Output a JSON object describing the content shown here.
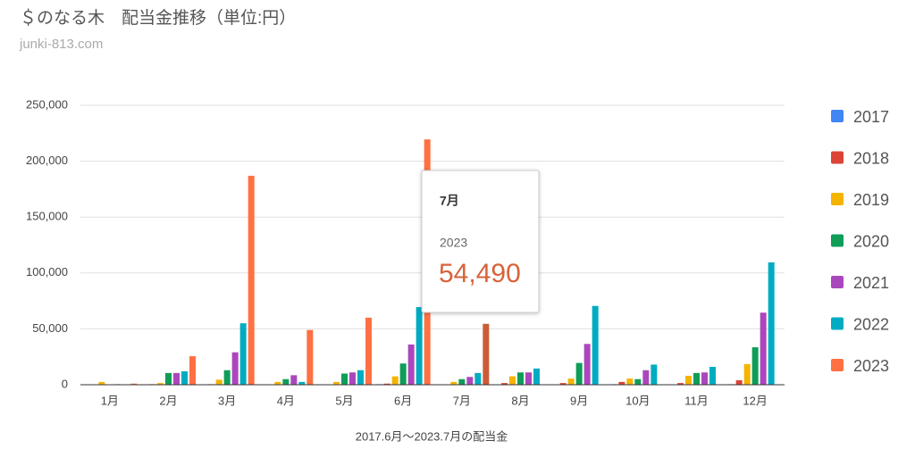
{
  "chart_data": {
    "type": "bar",
    "title": "＄のなる木　配当金推移（単位:円）",
    "subtitle": "junki-813.com",
    "x_label": "2017.6月～2023.7月の配当金",
    "categories": [
      "1月",
      "2月",
      "3月",
      "4月",
      "5月",
      "6月",
      "7月",
      "8月",
      "9月",
      "10月",
      "11月",
      "12月"
    ],
    "series": [
      {
        "name": "2017",
        "color": "#4285f4",
        "values": [
          null,
          null,
          null,
          null,
          null,
          500,
          0,
          0,
          0,
          500,
          0,
          500
        ]
      },
      {
        "name": "2018",
        "color": "#db4437",
        "values": [
          200,
          500,
          500,
          0,
          0,
          1000,
          0,
          1500,
          1500,
          2500,
          1500,
          4000
        ]
      },
      {
        "name": "2019",
        "color": "#f4b400",
        "values": [
          2500,
          1500,
          4500,
          2500,
          2500,
          7500,
          2500,
          7500,
          5500,
          5500,
          8000,
          18500
        ]
      },
      {
        "name": "2020",
        "color": "#0f9d58",
        "values": [
          0,
          10500,
          13000,
          5000,
          10000,
          19000,
          5000,
          11000,
          19500,
          5000,
          10500,
          33500
        ]
      },
      {
        "name": "2021",
        "color": "#ab47bc",
        "values": [
          500,
          10500,
          29000,
          8500,
          11000,
          36000,
          7000,
          11000,
          36500,
          13000,
          11000,
          64500
        ]
      },
      {
        "name": "2022",
        "color": "#00acc1",
        "values": [
          0,
          12000,
          55000,
          2500,
          13000,
          69500,
          10500,
          14500,
          70500,
          18000,
          16000,
          109500
        ]
      },
      {
        "name": "2023",
        "color": "#ff7043",
        "values": [
          1000,
          25500,
          187000,
          49000,
          60000,
          219500,
          54490,
          null,
          null,
          null,
          null,
          null
        ],
        "value_labels": [
          null,
          null,
          null,
          null,
          null,
          null,
          "54,490",
          null,
          null,
          null,
          null,
          null
        ]
      }
    ],
    "ylim": [
      0,
      250000
    ],
    "yticks": [
      0,
      {
        "value": 50000,
        "label": "50,000"
      },
      {
        "value": 100000,
        "label": "100,000"
      },
      {
        "value": 150000,
        "label": "150,000"
      },
      {
        "value": 200000,
        "label": "200,000"
      },
      {
        "value": 250000,
        "label": "250,000"
      }
    ],
    "grid": true,
    "legend": "right"
  }
}
